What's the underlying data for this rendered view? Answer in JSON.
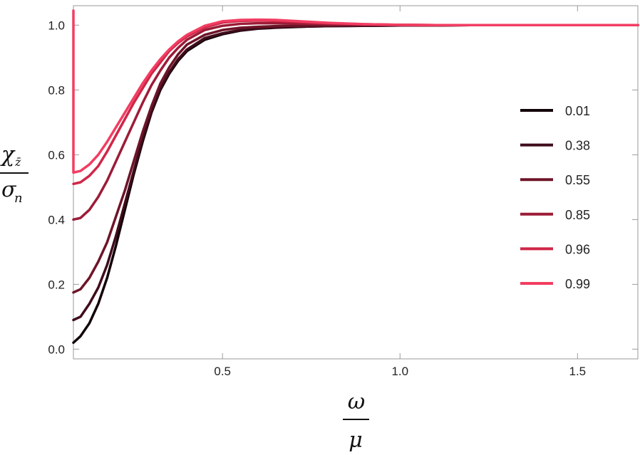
{
  "chart_data": {
    "type": "line",
    "xlabel": {
      "numerator": "ω",
      "denominator": "μ"
    },
    "ylabel": {
      "numerator": "χ",
      "numerator_sub": "z̄",
      "denominator": "σ",
      "denominator_sub": "n"
    },
    "xlim": [
      0.08,
      1.67
    ],
    "ylim": [
      -0.03,
      1.06
    ],
    "xticks": [
      {
        "value": 0.5,
        "label": "0.5"
      },
      {
        "value": 1.0,
        "label": "1.0"
      },
      {
        "value": 1.5,
        "label": "1.5"
      }
    ],
    "yticks": [
      {
        "value": 0.0,
        "label": "0.0"
      },
      {
        "value": 0.2,
        "label": "0.2"
      },
      {
        "value": 0.4,
        "label": "0.4"
      },
      {
        "value": 0.6,
        "label": "0.6"
      },
      {
        "value": 0.8,
        "label": "0.8"
      },
      {
        "value": 1.0,
        "label": "1.0"
      }
    ],
    "grid": false,
    "legend_position": "right",
    "x": [
      0.08,
      0.1,
      0.125,
      0.15,
      0.175,
      0.2,
      0.225,
      0.25,
      0.275,
      0.3,
      0.325,
      0.35,
      0.375,
      0.4,
      0.45,
      0.5,
      0.55,
      0.6,
      0.65,
      0.7,
      0.75,
      0.8,
      0.9,
      1.0,
      1.1,
      1.2,
      1.3,
      1.4,
      1.5,
      1.6,
      1.67
    ],
    "series": [
      {
        "name": "0.01",
        "color": "#120309",
        "values": [
          0.02,
          0.04,
          0.08,
          0.14,
          0.22,
          0.32,
          0.43,
          0.54,
          0.64,
          0.73,
          0.8,
          0.85,
          0.89,
          0.92,
          0.955,
          0.972,
          0.983,
          0.989,
          0.992,
          0.994,
          0.996,
          0.997,
          0.998,
          0.999,
          0.999,
          1.0,
          1.0,
          1.0,
          1.0,
          1.0,
          1.0
        ]
      },
      {
        "name": "0.38",
        "color": "#3f0c1b",
        "values": [
          0.09,
          0.1,
          0.14,
          0.19,
          0.26,
          0.35,
          0.45,
          0.55,
          0.65,
          0.735,
          0.805,
          0.855,
          0.895,
          0.925,
          0.96,
          0.975,
          0.985,
          0.99,
          0.993,
          0.995,
          0.996,
          0.997,
          0.998,
          0.999,
          0.999,
          1.0,
          1.0,
          1.0,
          1.0,
          1.0,
          1.0
        ]
      },
      {
        "name": "0.55",
        "color": "#6e1428",
        "values": [
          0.175,
          0.185,
          0.22,
          0.27,
          0.33,
          0.41,
          0.49,
          0.58,
          0.67,
          0.75,
          0.82,
          0.87,
          0.91,
          0.94,
          0.97,
          0.985,
          0.992,
          0.995,
          0.997,
          0.998,
          0.999,
          0.999,
          1.0,
          1.0,
          1.0,
          1.0,
          1.0,
          1.0,
          1.0,
          1.0,
          1.0
        ]
      },
      {
        "name": "0.85",
        "color": "#9c1c37",
        "values": [
          0.4,
          0.405,
          0.43,
          0.47,
          0.52,
          0.58,
          0.64,
          0.7,
          0.76,
          0.815,
          0.86,
          0.9,
          0.93,
          0.955,
          0.985,
          0.998,
          1.004,
          1.006,
          1.006,
          1.005,
          1.004,
          1.003,
          1.002,
          1.001,
          1.0,
          1.0,
          1.0,
          1.0,
          1.0,
          1.0,
          1.0
        ]
      },
      {
        "name": "0.96",
        "color": "#cf2648",
        "values": [
          0.51,
          0.515,
          0.535,
          0.565,
          0.61,
          0.66,
          0.71,
          0.76,
          0.805,
          0.85,
          0.885,
          0.92,
          0.945,
          0.965,
          0.993,
          1.008,
          1.013,
          1.014,
          1.013,
          1.011,
          1.008,
          1.006,
          1.003,
          1.001,
          1.0,
          1.0,
          1.0,
          1.0,
          1.0,
          1.0,
          1.0
        ]
      },
      {
        "name": "0.99",
        "color": "#f23d62",
        "spike_value": 1.045,
        "values": [
          0.545,
          0.55,
          0.57,
          0.6,
          0.64,
          0.685,
          0.73,
          0.775,
          0.82,
          0.86,
          0.895,
          0.925,
          0.95,
          0.97,
          0.998,
          1.012,
          1.016,
          1.017,
          1.016,
          1.013,
          1.01,
          1.007,
          1.003,
          1.001,
          1.0,
          1.0,
          1.0,
          1.0,
          1.0,
          1.0,
          1.0
        ]
      }
    ]
  }
}
